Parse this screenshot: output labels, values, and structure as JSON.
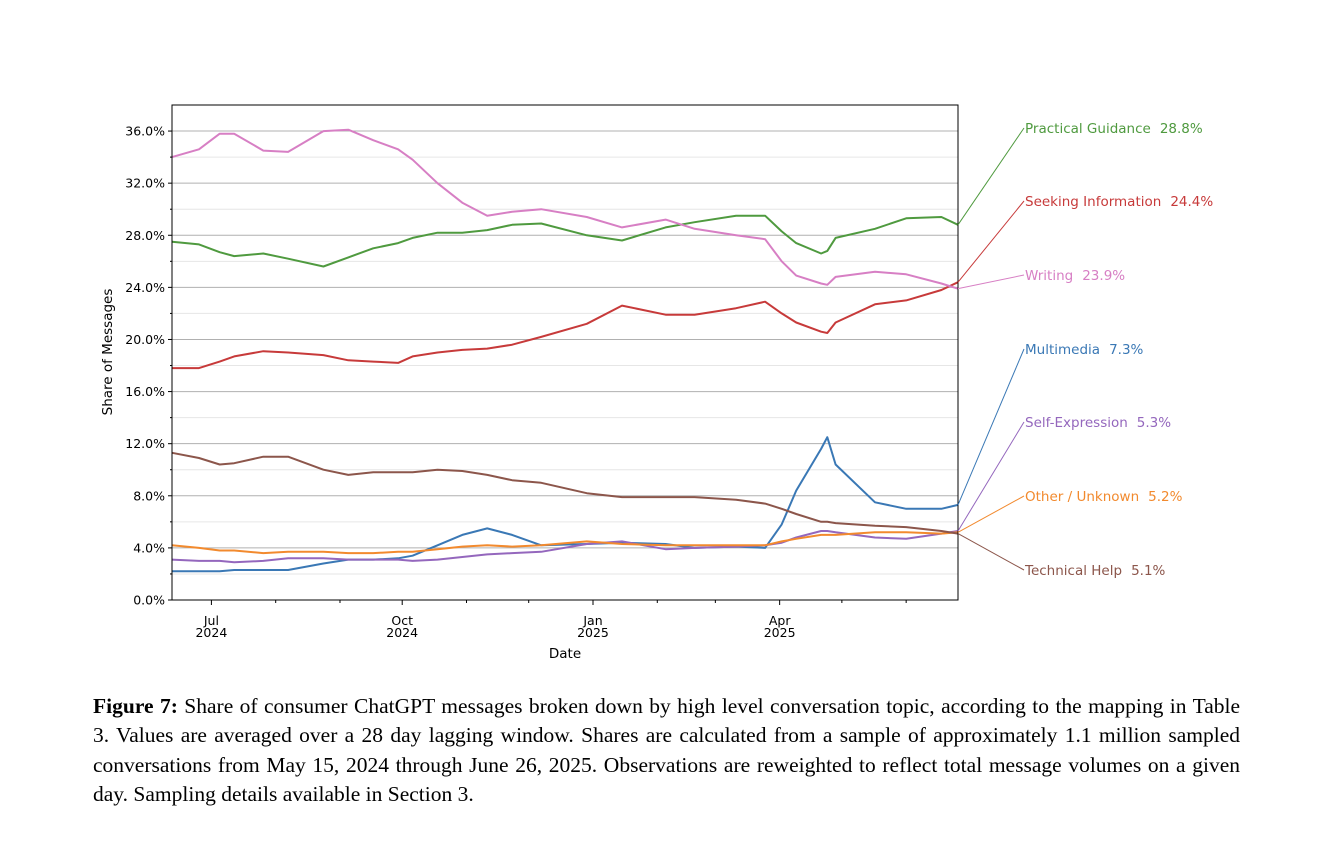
{
  "chart_data": {
    "type": "line",
    "title": "",
    "xlabel": "Date",
    "ylabel": "Share of Messages",
    "ylim": [
      0,
      0.38
    ],
    "xlim": [
      "2024-06-12",
      "2025-06-26"
    ],
    "grid": true,
    "legend": "direct labels at right end of lines",
    "y_ticks": [
      {
        "value": 0,
        "label": "0.0%"
      },
      {
        "value": 4,
        "label": "4.0%"
      },
      {
        "value": 8,
        "label": "8.0%"
      },
      {
        "value": 12,
        "label": "12.0%"
      },
      {
        "value": 16,
        "label": "16.0%"
      },
      {
        "value": 20,
        "label": "20.0%"
      },
      {
        "value": 24,
        "label": "24.0%"
      },
      {
        "value": 28,
        "label": "28.0%"
      },
      {
        "value": 32,
        "label": "32.0%"
      },
      {
        "value": 36,
        "label": "36.0%"
      }
    ],
    "x_ticks": [
      {
        "date": "2024-07-01",
        "month": "Jul",
        "year": "2024"
      },
      {
        "date": "2024-10-01",
        "month": "Oct",
        "year": "2024"
      },
      {
        "date": "2025-01-01",
        "month": "Jan",
        "year": "2025"
      },
      {
        "date": "2025-04-01",
        "month": "Apr",
        "year": "2025"
      }
    ],
    "x_minor_ticks": [
      "2024-08-01",
      "2024-09-01",
      "2024-11-01",
      "2024-12-01",
      "2025-02-01",
      "2025-03-01",
      "2025-05-01",
      "2025-06-01"
    ],
    "x": [
      "2024-06-12",
      "2024-06-25",
      "2024-07-05",
      "2024-07-12",
      "2024-07-26",
      "2024-08-07",
      "2024-08-24",
      "2024-09-05",
      "2024-09-17",
      "2024-09-29",
      "2024-10-06",
      "2024-10-18",
      "2024-10-30",
      "2024-11-11",
      "2024-11-23",
      "2024-12-07",
      "2024-12-29",
      "2025-01-15",
      "2025-02-05",
      "2025-02-19",
      "2025-03-11",
      "2025-03-25",
      "2025-04-02",
      "2025-04-09",
      "2025-04-21",
      "2025-04-24",
      "2025-04-28",
      "2025-05-17",
      "2025-06-01",
      "2025-06-18",
      "2025-06-26"
    ],
    "series": [
      {
        "name": "Practical Guidance",
        "final": "28.8%",
        "color": "#4f9a3f",
        "values": [
          27.5,
          27.3,
          26.7,
          26.4,
          26.6,
          26.2,
          25.6,
          26.3,
          27.0,
          27.4,
          27.8,
          28.2,
          28.2,
          28.4,
          28.8,
          28.9,
          28.0,
          27.6,
          28.6,
          29.0,
          29.5,
          29.5,
          28.3,
          27.4,
          26.6,
          26.8,
          27.8,
          28.5,
          29.3,
          29.4,
          28.8
        ]
      },
      {
        "name": "Seeking Information",
        "final": "24.4%",
        "color": "#c73a3a",
        "values": [
          17.8,
          17.8,
          18.3,
          18.7,
          19.1,
          19.0,
          18.8,
          18.4,
          18.3,
          18.2,
          18.7,
          19.0,
          19.2,
          19.3,
          19.6,
          20.2,
          21.2,
          22.6,
          21.9,
          21.9,
          22.4,
          22.9,
          22.0,
          21.3,
          20.6,
          20.5,
          21.3,
          22.7,
          23.0,
          23.8,
          24.4
        ]
      },
      {
        "name": "Writing",
        "final": "23.9%",
        "color": "#d77fc4",
        "values": [
          34.0,
          34.6,
          35.8,
          35.8,
          34.5,
          34.4,
          36.0,
          36.1,
          35.3,
          34.6,
          33.8,
          32.0,
          30.5,
          29.5,
          29.8,
          30.0,
          29.4,
          28.6,
          29.2,
          28.5,
          28.0,
          27.7,
          26.0,
          24.9,
          24.3,
          24.2,
          24.8,
          25.2,
          25.0,
          24.3,
          23.9
        ]
      },
      {
        "name": "Multimedia",
        "final": "7.3%",
        "color": "#3a78b5",
        "values": [
          2.2,
          2.2,
          2.2,
          2.3,
          2.3,
          2.3,
          2.8,
          3.1,
          3.1,
          3.2,
          3.4,
          4.2,
          5.0,
          5.5,
          5.0,
          4.2,
          4.3,
          4.4,
          4.3,
          4.0,
          4.1,
          4.0,
          5.8,
          8.4,
          11.6,
          12.5,
          10.4,
          7.5,
          7.0,
          7.0,
          7.3
        ]
      },
      {
        "name": "Self-Expression",
        "final": "5.3%",
        "color": "#9467bd",
        "values": [
          3.1,
          3.0,
          3.0,
          2.9,
          3.0,
          3.2,
          3.2,
          3.1,
          3.1,
          3.1,
          3.0,
          3.1,
          3.3,
          3.5,
          3.6,
          3.7,
          4.3,
          4.5,
          3.9,
          4.0,
          4.1,
          4.2,
          4.4,
          4.8,
          5.3,
          5.3,
          5.2,
          4.8,
          4.7,
          5.1,
          5.3
        ]
      },
      {
        "name": "Other / Unknown",
        "final": "5.2%",
        "color": "#f28a2e",
        "values": [
          4.2,
          4.0,
          3.8,
          3.8,
          3.6,
          3.7,
          3.7,
          3.6,
          3.6,
          3.7,
          3.7,
          3.9,
          4.1,
          4.2,
          4.1,
          4.2,
          4.5,
          4.3,
          4.2,
          4.2,
          4.2,
          4.2,
          4.5,
          4.7,
          5.0,
          5.0,
          5.0,
          5.2,
          5.2,
          5.1,
          5.2
        ]
      },
      {
        "name": "Technical Help",
        "final": "5.1%",
        "color": "#8c564b",
        "values": [
          11.3,
          10.9,
          10.4,
          10.5,
          11.0,
          11.0,
          10.0,
          9.6,
          9.8,
          9.8,
          9.8,
          10.0,
          9.9,
          9.6,
          9.2,
          9.0,
          8.2,
          7.9,
          7.9,
          7.9,
          7.7,
          7.4,
          7.0,
          6.6,
          6.0,
          6.0,
          5.9,
          5.7,
          5.6,
          5.3,
          5.1
        ]
      }
    ]
  },
  "caption": {
    "label": "Figure 7:",
    "text": " Share of consumer ChatGPT messages broken down by high level conversation topic, according to the mapping in Table 3. Values are averaged over a 28 day lagging window. Shares are calculated from a sample of approximately 1.1 million sampled conversations from May 15, 2024 through June 26, 2025. Observations are reweighted to reflect total message volumes on a given day. Sampling details available in Section 3."
  }
}
